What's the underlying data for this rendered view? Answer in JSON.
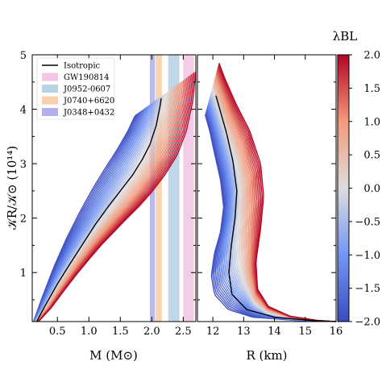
{
  "chart_data": [
    {
      "type": "line",
      "panel": "left",
      "xlabel": "M (M⊙)",
      "ylabel": "𝒦R/𝒦⊙ (10¹⁴)",
      "xlim": [
        0.1,
        2.7
      ],
      "ylim": [
        0.1,
        5.0
      ],
      "xticks": [
        0.5,
        1.0,
        1.5,
        2.0,
        2.5
      ],
      "xtick_labels": [
        "0.5",
        "1.0",
        "1.5",
        "2.0",
        "2.5"
      ],
      "yticks": [
        1,
        2,
        3,
        4,
        5
      ],
      "ytick_labels": [
        "1",
        "2",
        "3",
        "4",
        "5"
      ],
      "mass_bands": [
        {
          "name": "GW190814",
          "range": [
            2.5,
            2.67
          ],
          "color": "#f2c6e4"
        },
        {
          "name": "J0952-0607",
          "range": [
            2.26,
            2.44
          ],
          "color": "#b8d3e6"
        },
        {
          "name": "J0740+6620",
          "range": [
            2.06,
            2.16
          ],
          "color": "#f8cfa8"
        },
        {
          "name": "J0348+0432",
          "range": [
            1.97,
            2.05
          ],
          "color": "#b3b0ea"
        }
      ],
      "isotropic_curve": {
        "name": "Isotropic",
        "color": "#000000",
        "x": [
          0.17,
          0.3,
          0.5,
          0.7,
          0.9,
          1.1,
          1.3,
          1.5,
          1.7,
          1.85,
          1.97,
          2.07,
          2.13,
          2.15
        ],
        "y": [
          0.1,
          0.38,
          0.79,
          1.16,
          1.52,
          1.88,
          2.2,
          2.5,
          2.8,
          3.08,
          3.35,
          3.7,
          4.05,
          4.2
        ]
      },
      "family_extremes": {
        "lambda_min_curve": {
          "x": [
            0.12,
            0.25,
            0.45,
            0.65,
            0.85,
            1.05,
            1.25,
            1.45,
            1.62,
            1.72,
            1.75
          ],
          "y": [
            0.1,
            0.52,
            1.12,
            1.64,
            2.1,
            2.52,
            2.9,
            3.26,
            3.6,
            3.85,
            3.9
          ]
        },
        "lambda_max_curve": {
          "x": [
            0.2,
            0.4,
            0.6,
            0.8,
            1.0,
            1.2,
            1.4,
            1.6,
            1.8,
            2.0,
            2.2,
            2.4,
            2.55,
            2.65,
            2.7
          ],
          "y": [
            0.1,
            0.35,
            0.66,
            0.96,
            1.24,
            1.51,
            1.75,
            1.99,
            2.22,
            2.48,
            2.78,
            3.15,
            3.6,
            4.15,
            4.7
          ]
        }
      }
    },
    {
      "type": "line",
      "panel": "right",
      "xlabel": "R (km)",
      "xlim": [
        11.5,
        16.0
      ],
      "ylim": [
        0.1,
        5.0
      ],
      "xticks": [
        12,
        13,
        14,
        15,
        16
      ],
      "xtick_labels": [
        "12",
        "13",
        "14",
        "15",
        "16"
      ],
      "isotropic_curve": {
        "name": "Isotropic",
        "color": "#000000",
        "x": [
          12.1,
          12.25,
          12.45,
          12.65,
          12.78,
          12.72,
          12.6,
          12.52,
          12.62,
          13.1,
          14.0,
          15.2,
          16.0
        ],
        "y": [
          4.25,
          3.95,
          3.55,
          3.05,
          2.5,
          2.0,
          1.5,
          1.0,
          0.6,
          0.32,
          0.18,
          0.12,
          0.1
        ]
      },
      "family_extremes": {
        "lambda_min_curve": {
          "x": [
            11.75,
            11.9,
            12.05,
            12.25,
            12.35,
            12.25,
            12.05,
            11.95,
            12.05,
            12.5,
            13.3,
            14.7,
            16.0
          ],
          "y": [
            3.9,
            3.6,
            3.2,
            2.7,
            2.2,
            1.75,
            1.35,
            0.95,
            0.6,
            0.32,
            0.18,
            0.12,
            0.1
          ]
        },
        "lambda_max_curve": {
          "x": [
            12.2,
            12.4,
            12.75,
            13.2,
            13.55,
            13.65,
            13.55,
            13.4,
            13.45,
            13.8,
            14.5,
            15.4,
            16.0
          ],
          "y": [
            4.85,
            4.55,
            4.1,
            3.6,
            3.0,
            2.4,
            1.8,
            1.2,
            0.7,
            0.38,
            0.2,
            0.12,
            0.1
          ]
        }
      }
    }
  ],
  "legend": {
    "placement": "top-left",
    "entries": [
      {
        "label": "Isotropic",
        "kind": "line",
        "color": "#000000"
      },
      {
        "label": "GW190814",
        "kind": "patch",
        "color": "#f2c6e4"
      },
      {
        "label": "J0952-0607",
        "kind": "patch",
        "color": "#b8d3e6"
      },
      {
        "label": "J0740+6620",
        "kind": "patch",
        "color": "#f8cfa8"
      },
      {
        "label": "J0348+0432",
        "kind": "patch",
        "color": "#b3b0ea"
      }
    ]
  },
  "colorbar": {
    "title": "λBL",
    "min": -2.0,
    "max": 2.0,
    "ticks": [
      2.0,
      1.5,
      1.0,
      0.5,
      0.0,
      -0.5,
      -1.0,
      -1.5,
      -2.0
    ],
    "tick_labels": [
      "2.0",
      "1.5",
      "1.0",
      "0.5",
      "0.0",
      "−0.5",
      "−1.0",
      "−1.5",
      "−2.0"
    ],
    "colormap": "coolwarm",
    "low_color": "#3b4cc0",
    "mid_color": "#dddddd",
    "high_color": "#b40426"
  },
  "family": {
    "n_curves": 41
  }
}
